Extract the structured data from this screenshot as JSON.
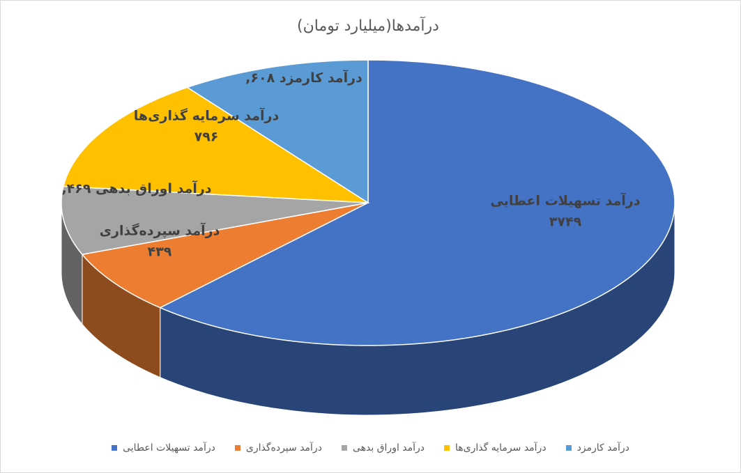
{
  "chart_data": {
    "type": "pie3d",
    "title": "درآمدها(میلیارد تومان)",
    "categories": [
      "درآمد تسهیلات اعطایی",
      "درآمد سپرده‌گذاری",
      "درآمد اوراق بدهی",
      "درآمد سرمایه گذاری‌ها",
      "درآمد کارمزد"
    ],
    "values": [
      3749,
      439,
      469,
      796,
      608
    ],
    "value_labels": [
      "۳۷۴۹",
      "۴۳۹",
      "۴۶۹,",
      "۷۹۶",
      "۶۰۸,"
    ],
    "colors": [
      "#4472c4",
      "#ed7d31",
      "#a5a5a5",
      "#ffc000",
      "#5b9bd5"
    ],
    "legend": "bottom"
  }
}
